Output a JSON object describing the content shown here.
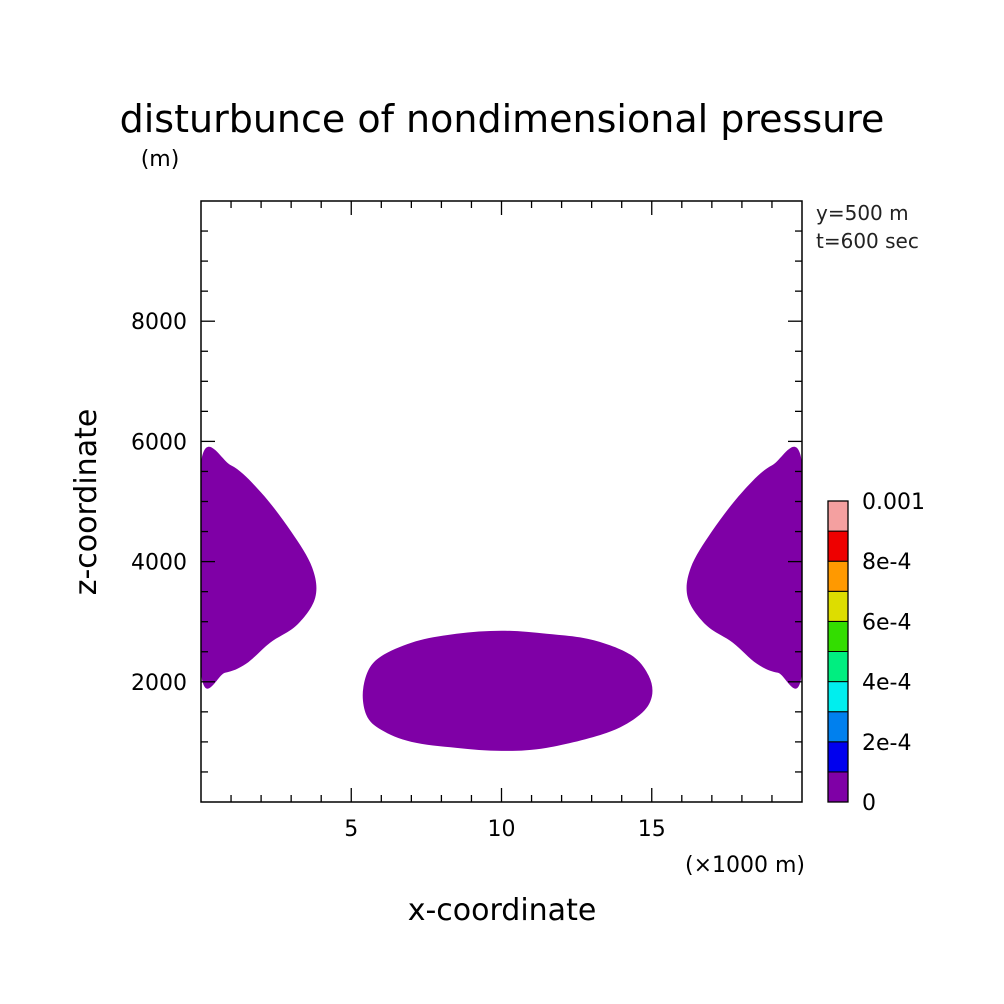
{
  "chart_data": {
    "type": "contour",
    "title": "disturbunce of nondimensional pressure",
    "units": "(m)",
    "xlabel": "x-coordinate",
    "ylabel": "z-coordinate",
    "x_unit_label": "(×1000 m)",
    "annotations": [
      "y=500 m",
      "t=600 sec"
    ],
    "xlim": [
      0,
      20
    ],
    "ylim": [
      0,
      10000
    ],
    "x_ticks": [
      5,
      10,
      15
    ],
    "x_tick_labels": [
      "5",
      "10",
      "15"
    ],
    "y_ticks": [
      2000,
      4000,
      6000,
      8000
    ],
    "y_tick_labels": [
      "2000",
      "4000",
      "6000",
      "8000"
    ],
    "colorbar": {
      "levels": [
        0,
        0.0001,
        0.0002,
        0.0003,
        0.0004,
        0.0005,
        0.0006,
        0.0007,
        0.0008,
        0.0009,
        0.001
      ],
      "tick_labels": [
        "0",
        "2e-4",
        "4e-4",
        "6e-4",
        "8e-4",
        "0.001"
      ],
      "colors": [
        "#7f00a6",
        "#0000ee",
        "#0080ee",
        "#00eeee",
        "#00ee80",
        "#33dd00",
        "#dddd00",
        "#ff9900",
        "#ee0000",
        "#f4a0a0"
      ]
    },
    "regions": [
      {
        "name": "left-lobe",
        "level_band": [
          0,
          0.0001
        ],
        "color": "#7f00a6",
        "outline": [
          [
            0,
            5650
          ],
          [
            1,
            5600
          ],
          [
            2,
            5150
          ],
          [
            3,
            4500
          ],
          [
            3.7,
            3900
          ],
          [
            3.8,
            3400
          ],
          [
            3.2,
            2950
          ],
          [
            2.3,
            2650
          ],
          [
            1.5,
            2300
          ],
          [
            0.8,
            2150
          ],
          [
            0,
            2150
          ]
        ]
      },
      {
        "name": "right-lobe",
        "level_band": [
          0,
          0.0001
        ],
        "color": "#7f00a6",
        "outline": [
          [
            20,
            5650
          ],
          [
            19,
            5600
          ],
          [
            18,
            5150
          ],
          [
            17,
            4500
          ],
          [
            16.3,
            3900
          ],
          [
            16.2,
            3400
          ],
          [
            16.8,
            2950
          ],
          [
            17.7,
            2650
          ],
          [
            18.5,
            2300
          ],
          [
            19.2,
            2150
          ],
          [
            20,
            2150
          ]
        ]
      },
      {
        "name": "bottom-center-blob",
        "level_band": [
          0,
          0.0001
        ],
        "color": "#7f00a6",
        "outline": [
          [
            5.4,
            1900
          ],
          [
            5.8,
            2350
          ],
          [
            7,
            2650
          ],
          [
            8.5,
            2800
          ],
          [
            10,
            2850
          ],
          [
            11.5,
            2800
          ],
          [
            13,
            2700
          ],
          [
            14.3,
            2450
          ],
          [
            14.9,
            2100
          ],
          [
            15,
            1750
          ],
          [
            14.6,
            1450
          ],
          [
            13.5,
            1150
          ],
          [
            11.5,
            900
          ],
          [
            10,
            850
          ],
          [
            8.5,
            900
          ],
          [
            7,
            1000
          ],
          [
            6,
            1200
          ],
          [
            5.5,
            1450
          ]
        ]
      }
    ]
  }
}
